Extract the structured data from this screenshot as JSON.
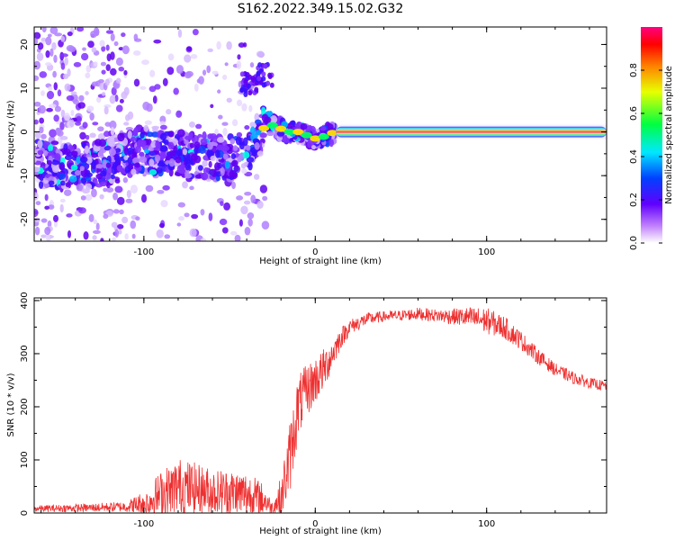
{
  "title": "S162.2022.349.15.02.G32",
  "colors": {
    "snr_line": "#ee3030",
    "axis": "#000000"
  },
  "chart_data": [
    {
      "type": "heatmap",
      "name": "spectrogram",
      "xlabel": "Height of straight line (km)",
      "ylabel": "Frequency (Hz)",
      "xlim": [
        -164,
        170
      ],
      "ylim": [
        -25,
        24
      ],
      "x_ticks": [
        -100,
        0,
        100
      ],
      "y_ticks": [
        -20,
        -10,
        0,
        10,
        20
      ],
      "colorbar": {
        "label": "Normalized spectral amplitude",
        "range": [
          0,
          1
        ],
        "ticks": [
          0.0,
          0.2,
          0.4,
          0.6,
          0.8
        ],
        "colormap": "gist_rainbow_r"
      },
      "ridge": {
        "x": [
          -164,
          -140,
          -120,
          -100,
          -80,
          -60,
          -45,
          -35,
          -28,
          -22,
          -15,
          -8,
          -2,
          3,
          8,
          12,
          40,
          80,
          120,
          170
        ],
        "y": [
          -7,
          -8,
          -7,
          -4,
          -5,
          -6,
          -5,
          -2,
          2,
          1,
          0,
          0,
          -1.5,
          -1.5,
          -0.5,
          0,
          0,
          0,
          0,
          0
        ]
      },
      "cluster": {
        "x": [
          -30,
          -38
        ],
        "y": [
          13,
          11
        ]
      }
    },
    {
      "type": "line",
      "name": "snr",
      "xlabel": "Height of straight line (km)",
      "ylabel": "SNR (10 * v/v)",
      "xlim": [
        -164,
        170
      ],
      "ylim": [
        0,
        405
      ],
      "x_ticks": [
        -100,
        0,
        100
      ],
      "y_ticks": [
        0,
        100,
        200,
        300,
        400
      ],
      "envelope": {
        "x": [
          -164,
          -130,
          -110,
          -100,
          -90,
          -80,
          -70,
          -60,
          -50,
          -40,
          -30,
          -25,
          -20,
          -15,
          -10,
          -5,
          0,
          5,
          10,
          15,
          20,
          30,
          40,
          50,
          60,
          70,
          80,
          90,
          100,
          110,
          120,
          130,
          140,
          150,
          160,
          170
        ],
        "base": [
          8,
          10,
          12,
          18,
          35,
          50,
          45,
          40,
          38,
          35,
          25,
          10,
          30,
          100,
          200,
          230,
          250,
          270,
          300,
          330,
          350,
          365,
          370,
          372,
          375,
          372,
          370,
          368,
          362,
          350,
          325,
          295,
          270,
          255,
          245,
          238
        ],
        "noise": [
          6,
          8,
          10,
          25,
          45,
          55,
          50,
          45,
          45,
          45,
          30,
          10,
          40,
          70,
          60,
          50,
          45,
          40,
          30,
          20,
          15,
          12,
          10,
          10,
          12,
          12,
          15,
          20,
          25,
          22,
          18,
          15,
          12,
          12,
          10,
          10
        ]
      }
    }
  ]
}
